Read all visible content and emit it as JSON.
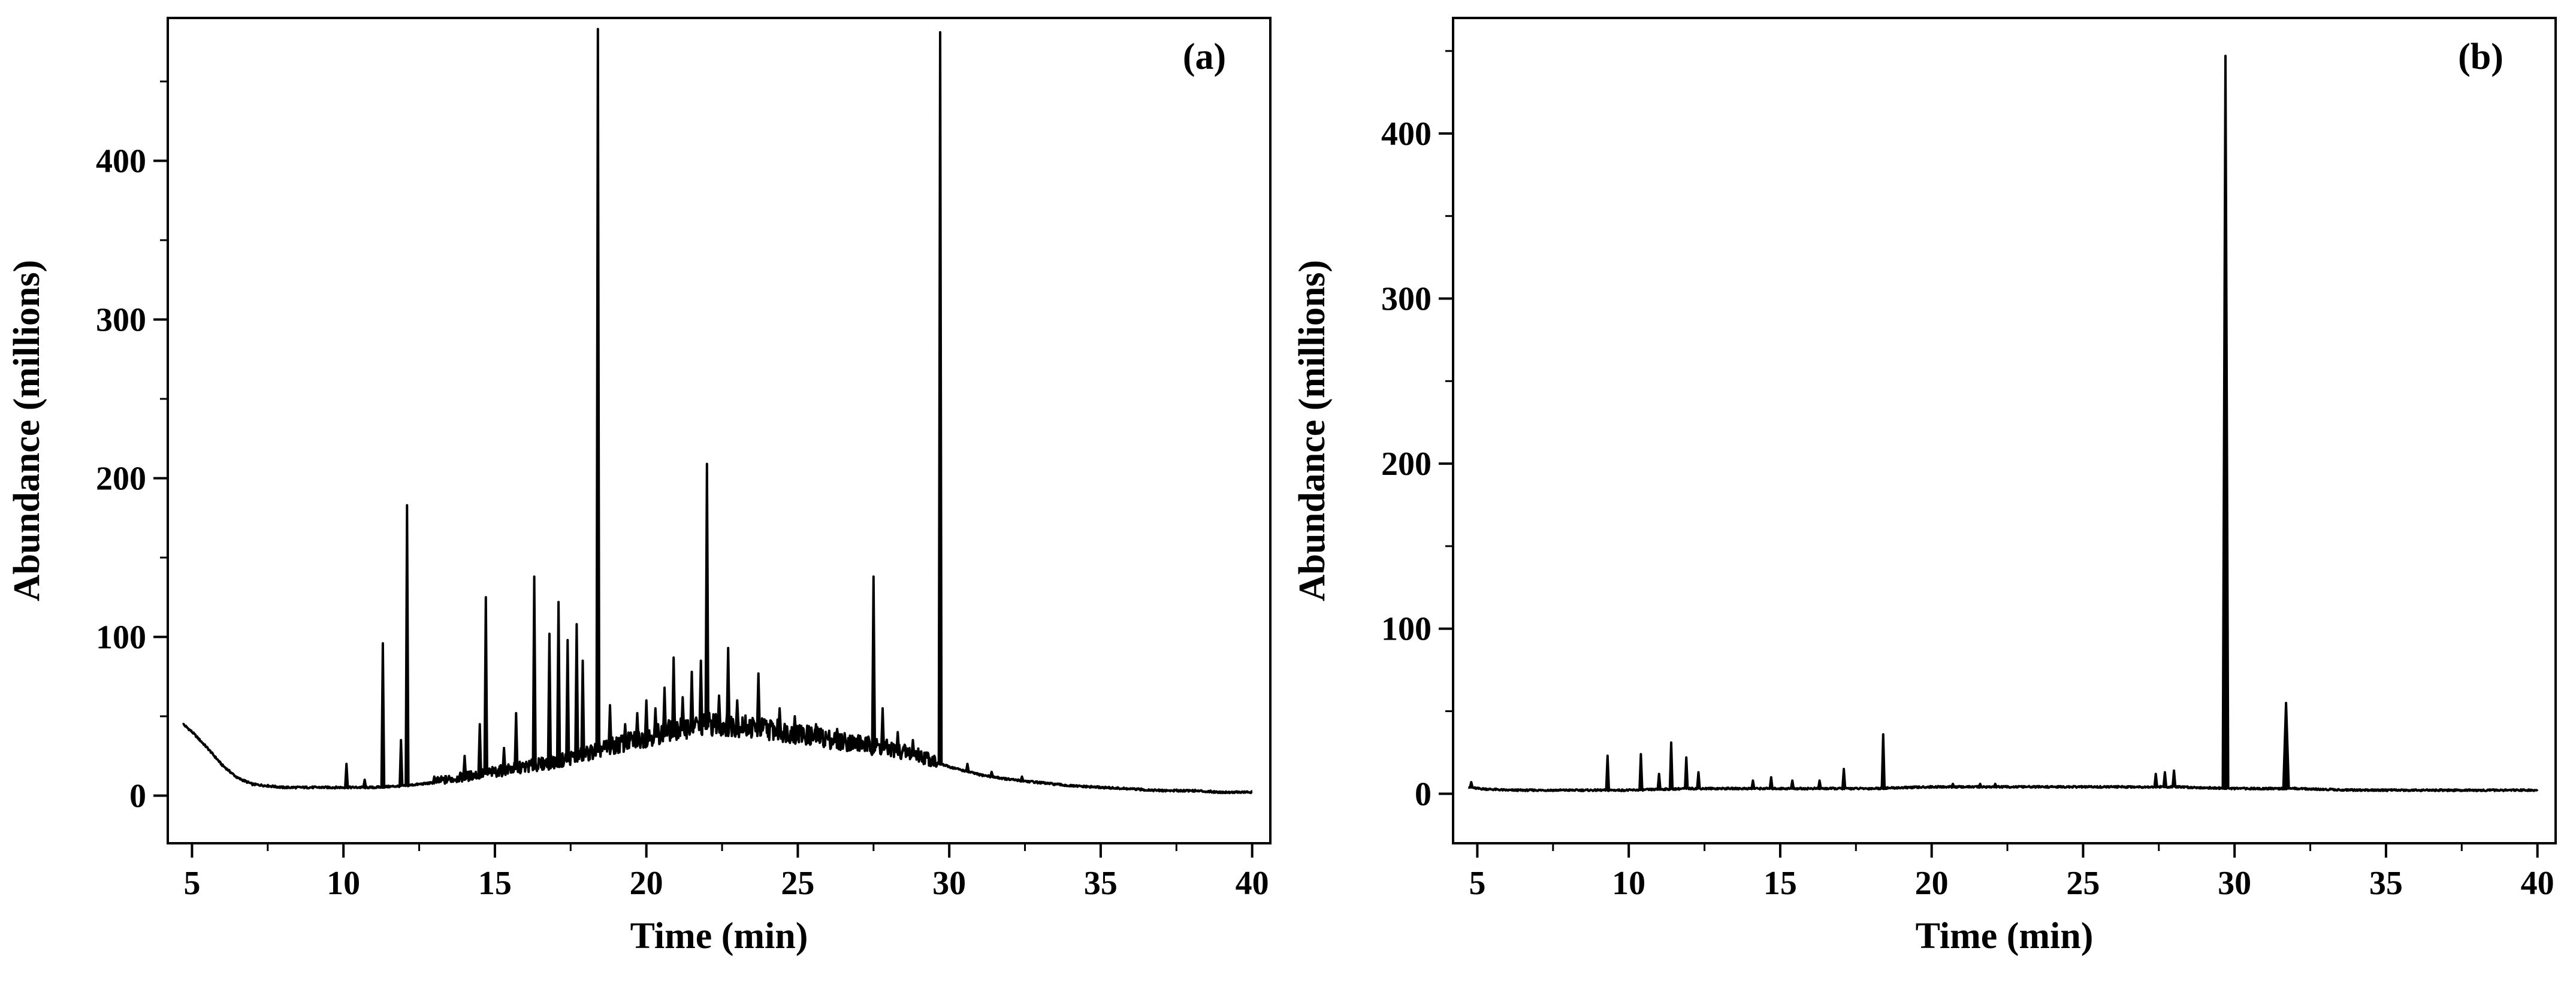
{
  "chart_data": [
    {
      "type": "line",
      "panel_label": "(a)",
      "xlabel": "Time (min)",
      "ylabel": "Abundance (millions)",
      "xlim": [
        4.2,
        40.6
      ],
      "ylim": [
        -30,
        490
      ],
      "xticks": [
        5,
        10,
        15,
        20,
        25,
        30,
        35,
        40
      ],
      "yticks": [
        0,
        100,
        200,
        300,
        400
      ],
      "grid": false,
      "baseline": {
        "x": [
          4.7,
          5.0,
          5.5,
          6.0,
          6.5,
          7.0,
          8.0,
          9.0,
          10.0,
          11.0,
          12.0,
          13.0,
          14.0,
          15.0,
          16.0,
          17.0,
          18.0,
          19.0,
          20.0,
          21.0,
          22.0,
          23.0,
          24.0,
          25.0,
          26.0,
          27.0,
          28.0,
          29.0,
          30.0,
          31.0,
          32.0,
          33.0,
          34.0,
          35.0,
          36.0,
          37.0,
          38.0,
          39.0,
          40.0
        ],
        "y": [
          45,
          40,
          30,
          19,
          11,
          7,
          5,
          5,
          5,
          5,
          6,
          8,
          11,
          14,
          17,
          20,
          25,
          30,
          35,
          40,
          43,
          42,
          40,
          37,
          34,
          31,
          28,
          24,
          18,
          13,
          10,
          8,
          6,
          5,
          4,
          3,
          3,
          2,
          2
        ]
      },
      "peaks": {
        "x": [
          10.1,
          10.7,
          11.3,
          11.9,
          12.1,
          13.0,
          14.0,
          14.5,
          14.7,
          15.3,
          15.7,
          16.3,
          16.8,
          17.1,
          17.4,
          17.7,
          17.9,
          18.4,
          18.8,
          19.3,
          19.7,
          20.0,
          20.3,
          20.6,
          20.9,
          21.2,
          21.5,
          21.8,
          22.0,
          22.4,
          22.7,
          23.0,
          23.7,
          24.4,
          24.9,
          25.6,
          26.3,
          27.0,
          27.5,
          27.8,
          28.3,
          28.8,
          29.7,
          30.6,
          31.4,
          32.4
        ],
        "y": [
          20,
          10,
          96,
          35,
          183,
          12,
          25,
          45,
          125,
          30,
          52,
          138,
          102,
          122,
          98,
          108,
          85,
          483,
          57,
          45,
          52,
          60,
          55,
          68,
          87,
          62,
          78,
          85,
          209,
          63,
          93,
          60,
          77,
          55,
          50,
          45,
          42,
          38,
          138,
          55,
          40,
          35,
          481,
          20,
          15,
          12
        ]
      }
    },
    {
      "type": "line",
      "panel_label": "(b)",
      "xlabel": "Time (min)",
      "ylabel": "Abundance (millions)",
      "xlim": [
        4.2,
        40.6
      ],
      "ylim": [
        -30,
        470
      ],
      "xticks": [
        5,
        10,
        15,
        20,
        25,
        30,
        35,
        40
      ],
      "yticks": [
        0,
        100,
        200,
        300,
        400
      ],
      "grid": false,
      "baseline": {
        "x": [
          4.7,
          5.0,
          6.0,
          8.0,
          10.0,
          12.0,
          14.0,
          16.0,
          18.0,
          20.0,
          22.0,
          24.0,
          26.0,
          28.0,
          30.0,
          32.0,
          34.0,
          36.0,
          38.0,
          40.0
        ],
        "y": [
          4,
          3,
          2,
          2,
          2,
          3,
          3,
          3,
          3,
          4,
          4,
          4,
          4,
          4,
          3,
          3,
          2,
          2,
          2,
          2
        ]
      },
      "peaks": {
        "x": [
          4.8,
          9.3,
          10.4,
          11.0,
          11.4,
          11.9,
          12.3,
          14.1,
          14.7,
          15.4,
          16.3,
          17.1,
          18.4,
          20.7,
          21.6,
          22.1,
          27.4,
          27.7,
          28.0,
          29.7,
          31.7
        ],
        "y": [
          7,
          23,
          24,
          12,
          31,
          22,
          13,
          8,
          10,
          8,
          8,
          15,
          36,
          6,
          6,
          6,
          12,
          13,
          14,
          447,
          55
        ]
      }
    }
  ]
}
